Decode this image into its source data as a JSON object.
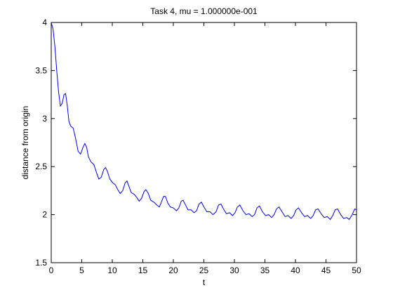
{
  "chart_data": {
    "type": "line",
    "title": "Task 4, mu = 1.000000e-001",
    "xlabel": "t",
    "ylabel": "distance from origin",
    "xlim": [
      0,
      50
    ],
    "ylim": [
      1.5,
      4
    ],
    "x_ticks": [
      "0",
      "5",
      "10",
      "15",
      "20",
      "25",
      "30",
      "35",
      "40",
      "45",
      "50"
    ],
    "y_ticks": [
      "1.5",
      "2",
      "2.5",
      "3",
      "3.5",
      "4"
    ],
    "grid": false,
    "legend": "none",
    "series": [
      {
        "color": "#0000ff",
        "points": [
          [
            0.0,
            4.0
          ],
          [
            0.3,
            3.93
          ],
          [
            0.6,
            3.75
          ],
          [
            0.9,
            3.5
          ],
          [
            1.2,
            3.28
          ],
          [
            1.5,
            3.13
          ],
          [
            1.8,
            3.16
          ],
          [
            2.1,
            3.25
          ],
          [
            2.35,
            3.26
          ],
          [
            2.6,
            3.15
          ],
          [
            2.9,
            2.97
          ],
          [
            3.2,
            2.92
          ],
          [
            3.6,
            2.9
          ],
          [
            4.0,
            2.79
          ],
          [
            4.4,
            2.66
          ],
          [
            4.8,
            2.63
          ],
          [
            5.2,
            2.7
          ],
          [
            5.5,
            2.74
          ],
          [
            5.8,
            2.7
          ],
          [
            6.1,
            2.6
          ],
          [
            6.5,
            2.55
          ],
          [
            7.0,
            2.52
          ],
          [
            7.4,
            2.44
          ],
          [
            7.8,
            2.37
          ],
          [
            8.2,
            2.39
          ],
          [
            8.6,
            2.47
          ],
          [
            8.9,
            2.49
          ],
          [
            9.2,
            2.45
          ],
          [
            9.6,
            2.37
          ],
          [
            10.1,
            2.33
          ],
          [
            10.5,
            2.31
          ],
          [
            10.9,
            2.26
          ],
          [
            11.3,
            2.22
          ],
          [
            11.7,
            2.25
          ],
          [
            12.1,
            2.33
          ],
          [
            12.4,
            2.35
          ],
          [
            12.7,
            2.3
          ],
          [
            13.1,
            2.23
          ],
          [
            13.6,
            2.21
          ],
          [
            14.0,
            2.18
          ],
          [
            14.4,
            2.14
          ],
          [
            14.8,
            2.17
          ],
          [
            15.2,
            2.24
          ],
          [
            15.5,
            2.26
          ],
          [
            15.9,
            2.22
          ],
          [
            16.3,
            2.15
          ],
          [
            16.8,
            2.13
          ],
          [
            17.3,
            2.1
          ],
          [
            17.7,
            2.08
          ],
          [
            18.1,
            2.14
          ],
          [
            18.4,
            2.19
          ],
          [
            18.7,
            2.19
          ],
          [
            19.1,
            2.12
          ],
          [
            19.5,
            2.08
          ],
          [
            20.0,
            2.07
          ],
          [
            20.5,
            2.04
          ],
          [
            20.9,
            2.07
          ],
          [
            21.3,
            2.14
          ],
          [
            21.6,
            2.15
          ],
          [
            22.0,
            2.1
          ],
          [
            22.4,
            2.05
          ],
          [
            22.9,
            2.05
          ],
          [
            23.4,
            2.02
          ],
          [
            23.8,
            2.04
          ],
          [
            24.2,
            2.11
          ],
          [
            24.6,
            2.13
          ],
          [
            25.0,
            2.08
          ],
          [
            25.5,
            2.03
          ],
          [
            26.0,
            2.03
          ],
          [
            26.5,
            2.0
          ],
          [
            27.0,
            2.03
          ],
          [
            27.4,
            2.1
          ],
          [
            27.8,
            2.11
          ],
          [
            28.2,
            2.06
          ],
          [
            28.7,
            2.01
          ],
          [
            29.2,
            2.02
          ],
          [
            29.7,
            1.99
          ],
          [
            30.1,
            2.02
          ],
          [
            30.5,
            2.08
          ],
          [
            30.9,
            2.1
          ],
          [
            31.4,
            2.04
          ],
          [
            31.9,
            2.0
          ],
          [
            32.4,
            2.01
          ],
          [
            32.9,
            1.98
          ],
          [
            33.3,
            2.0
          ],
          [
            33.7,
            2.07
          ],
          [
            34.1,
            2.09
          ],
          [
            34.6,
            2.03
          ],
          [
            35.1,
            1.99
          ],
          [
            35.6,
            2.0
          ],
          [
            36.1,
            1.97
          ],
          [
            36.5,
            2.0
          ],
          [
            36.9,
            2.06
          ],
          [
            37.3,
            2.08
          ],
          [
            37.8,
            2.03
          ],
          [
            38.3,
            1.98
          ],
          [
            38.8,
            1.99
          ],
          [
            39.3,
            1.96
          ],
          [
            39.7,
            1.99
          ],
          [
            40.1,
            2.05
          ],
          [
            40.5,
            2.07
          ],
          [
            41.0,
            2.02
          ],
          [
            41.5,
            1.98
          ],
          [
            42.0,
            1.99
          ],
          [
            42.5,
            1.96
          ],
          [
            42.9,
            1.99
          ],
          [
            43.3,
            2.05
          ],
          [
            43.7,
            2.06
          ],
          [
            44.2,
            2.01
          ],
          [
            44.7,
            1.97
          ],
          [
            45.2,
            1.98
          ],
          [
            45.7,
            1.95
          ],
          [
            46.1,
            1.99
          ],
          [
            46.5,
            2.05
          ],
          [
            46.9,
            2.06
          ],
          [
            47.4,
            2.0
          ],
          [
            47.9,
            1.96
          ],
          [
            48.4,
            1.97
          ],
          [
            48.8,
            1.95
          ],
          [
            49.3,
            2.0
          ],
          [
            49.7,
            2.06
          ],
          [
            50.0,
            2.05
          ]
        ]
      }
    ]
  }
}
